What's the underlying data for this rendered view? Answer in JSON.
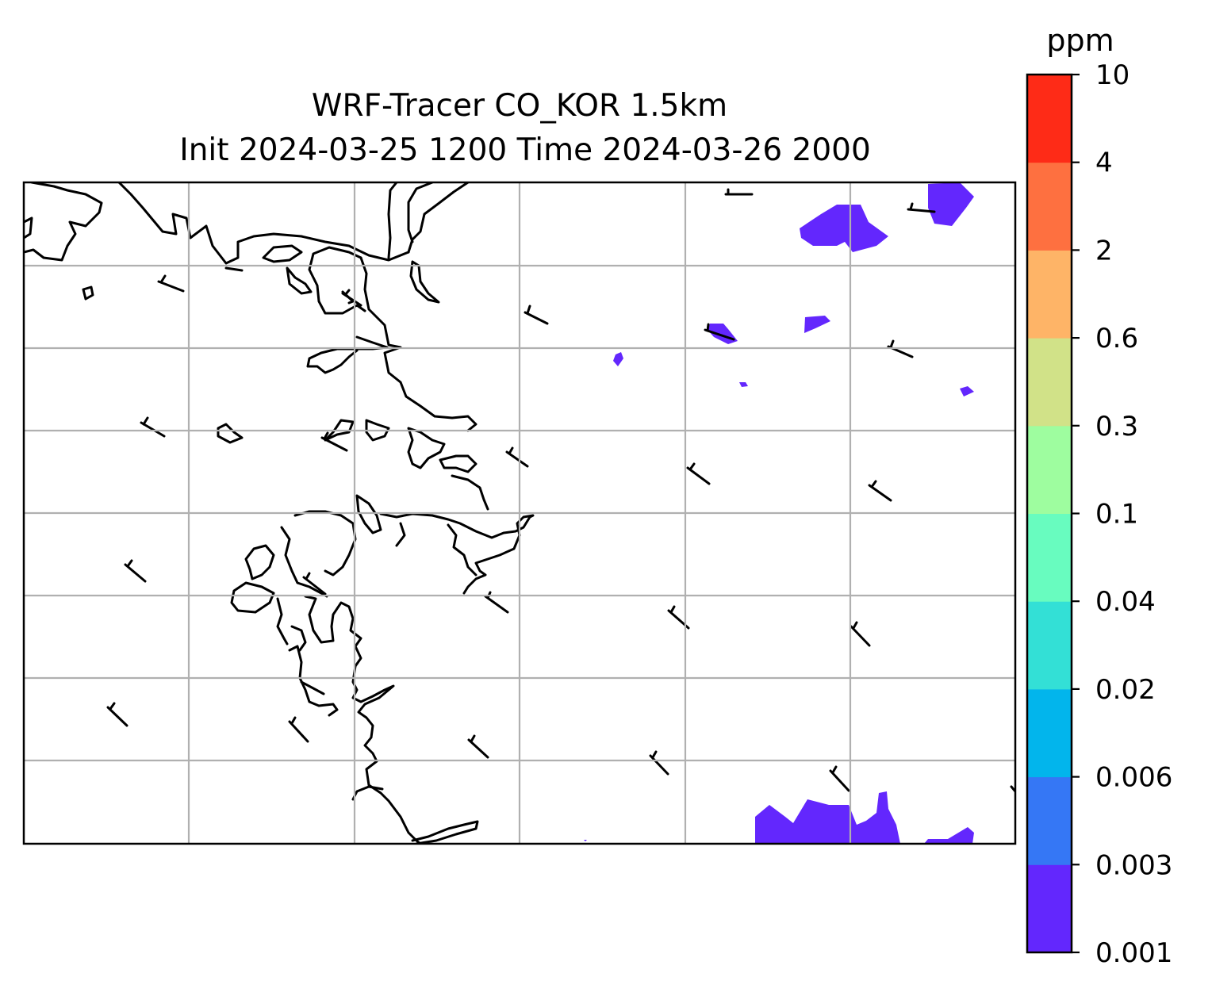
{
  "title": {
    "line1": "WRF-Tracer CO_KOR 1.5km",
    "line2": "Init 2024-03-25 1200 Time 2024-03-26 2000"
  },
  "colorbar": {
    "unit": "ppm",
    "levels": [
      "0.001",
      "0.003",
      "0.006",
      "0.02",
      "0.04",
      "0.1",
      "0.3",
      "0.6",
      "2",
      "4",
      "10"
    ],
    "colors": [
      "#6327fd",
      "#3577f5",
      "#02b5ec",
      "#33e0d6",
      "#68fcbf",
      "#9efd9f",
      "#d1e288",
      "#feb467",
      "#fe7040",
      "#fe2b17"
    ]
  },
  "colors": {
    "grid": "#b0b0b0",
    "coastline": "#000000",
    "tracer_low": "#6327fd"
  }
}
